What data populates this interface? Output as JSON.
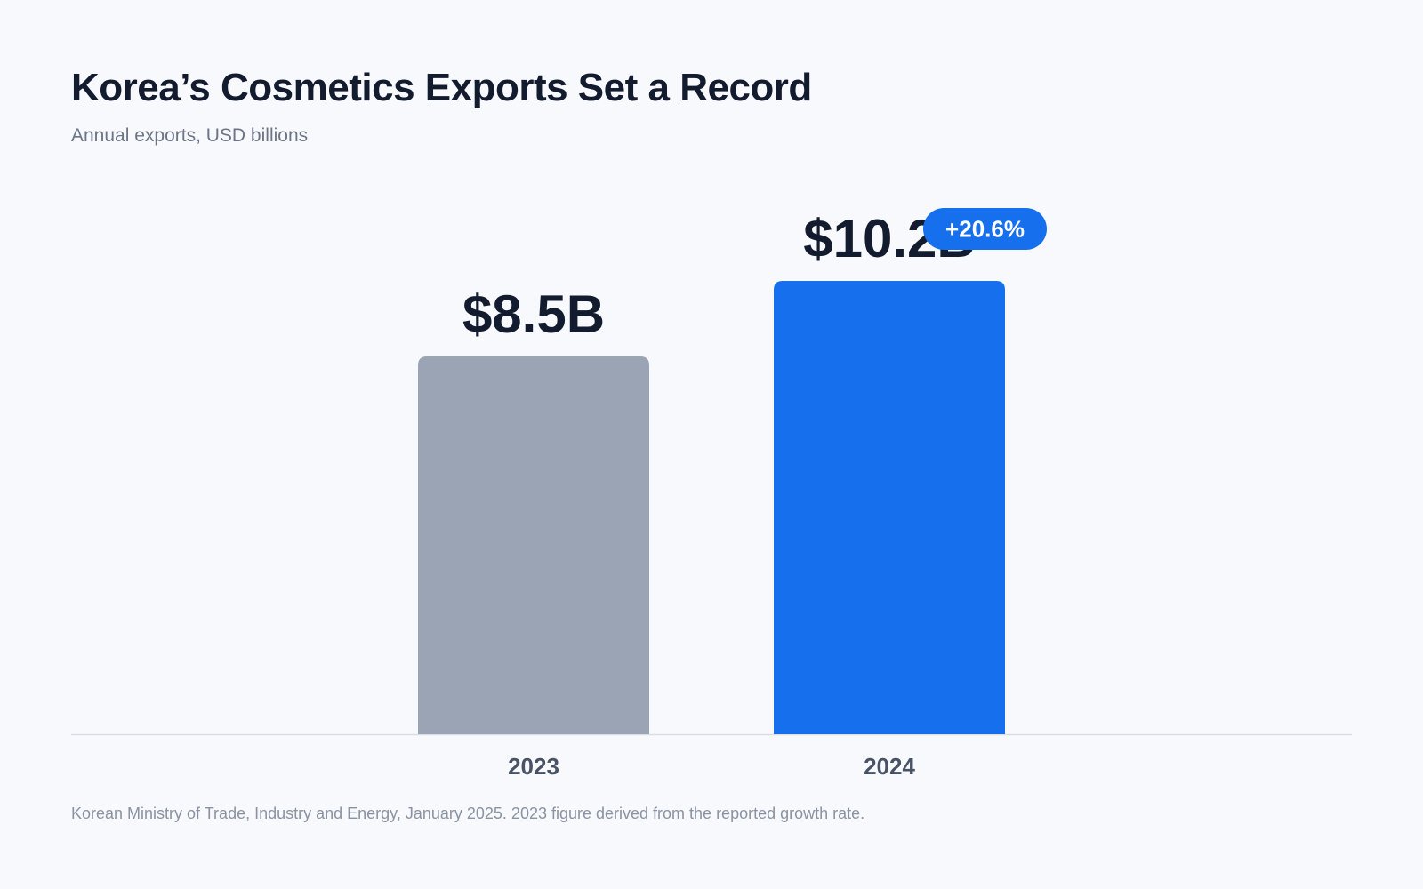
{
  "header": {
    "title": "Korea’s Cosmetics Exports Set a Record",
    "subtitle": "Annual exports, USD billions"
  },
  "footer": {
    "source": "Korean Ministry of Trade, Industry and Energy, January 2025. 2023 figure derived from the reported growth rate."
  },
  "chart_data": {
    "type": "bar",
    "categories": [
      "2023",
      "2024"
    ],
    "values": [
      8.5,
      10.2
    ],
    "data_labels": [
      "$8.5B",
      "$10.2B"
    ],
    "colors": [
      "#9aa4b4",
      "#1670ee"
    ],
    "annotation": {
      "text": "+20.6%",
      "category": "2024",
      "color": "#1670ee"
    },
    "axis_color": "#d9dee6",
    "value_label_color": "#131b2e",
    "category_label_color": "#4a5366",
    "ylim": [
      0,
      10.2
    ],
    "grid": false,
    "legend": "none"
  }
}
